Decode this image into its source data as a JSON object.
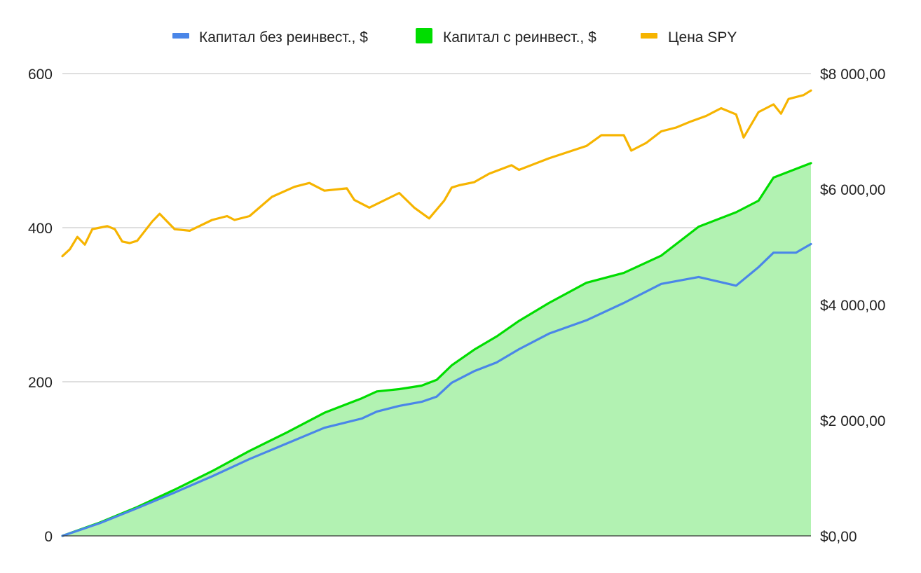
{
  "chart_data": {
    "type": "line",
    "title": "",
    "xlabel": "",
    "ylabel": "",
    "grid": true,
    "legend_position": "top",
    "y_left": {
      "ticks": [
        "0",
        "200",
        "400",
        "600"
      ],
      "range": [
        0,
        600
      ]
    },
    "y_right": {
      "ticks": [
        "$0,00",
        "$2 000,00",
        "$4 000,00",
        "$6 000,00",
        "$8 000,00"
      ],
      "range": [
        0,
        8000
      ]
    },
    "x_range": [
      0,
      100
    ],
    "series": [
      {
        "name": "Капитал без реинвест., $",
        "axis": "right",
        "style": "line",
        "color": "#4a86e8",
        "x": [
          0,
          5,
          10,
          15,
          20,
          25,
          30,
          35,
          40,
          42,
          45,
          48,
          50,
          52,
          55,
          58,
          61,
          65,
          70,
          75,
          80,
          85,
          90,
          93,
          95,
          98,
          100
        ],
        "values": [
          0,
          220,
          480,
          750,
          1030,
          1330,
          1600,
          1870,
          2030,
          2150,
          2250,
          2320,
          2410,
          2650,
          2850,
          3000,
          3230,
          3500,
          3730,
          4030,
          4360,
          4480,
          4330,
          4650,
          4900,
          4900,
          5050
        ]
      },
      {
        "name": "Капитал с реинвест., $",
        "axis": "right",
        "style": "area",
        "color": "#00dd00",
        "fill": "#b2f2b2",
        "x": [
          0,
          5,
          10,
          15,
          20,
          25,
          30,
          35,
          40,
          42,
          45,
          48,
          50,
          52,
          55,
          58,
          61,
          65,
          70,
          75,
          80,
          85,
          90,
          93,
          95,
          98,
          100
        ],
        "values": [
          0,
          230,
          500,
          800,
          1120,
          1470,
          1790,
          2130,
          2380,
          2500,
          2540,
          2600,
          2700,
          2950,
          3220,
          3450,
          3720,
          4030,
          4380,
          4550,
          4850,
          5350,
          5600,
          5800,
          6200,
          6350,
          6450
        ]
      },
      {
        "name": "Цена SPY",
        "axis": "left",
        "style": "line",
        "color": "#f6b400",
        "x": [
          0,
          1,
          2,
          3,
          4,
          5,
          6,
          7,
          8,
          9,
          10,
          12,
          13,
          15,
          17,
          20,
          22,
          23,
          25,
          28,
          31,
          33,
          35,
          38,
          39,
          41,
          45,
          47,
          49,
          51,
          52,
          53,
          55,
          57,
          60,
          61,
          65,
          70,
          72,
          75,
          76,
          78,
          80,
          82,
          84,
          86,
          88,
          90,
          91,
          93,
          94,
          95,
          96,
          97,
          99,
          100
        ],
        "values": [
          363,
          372,
          388,
          378,
          398,
          400,
          402,
          398,
          382,
          380,
          383,
          408,
          418,
          398,
          396,
          410,
          415,
          410,
          415,
          440,
          453,
          458,
          448,
          451,
          436,
          426,
          445,
          426,
          412,
          435,
          452,
          455,
          459,
          470,
          481,
          475,
          490,
          506,
          520,
          520,
          500,
          510,
          525,
          530,
          538,
          545,
          555,
          547,
          517,
          550,
          555,
          560,
          548,
          567,
          572,
          578
        ]
      }
    ]
  }
}
